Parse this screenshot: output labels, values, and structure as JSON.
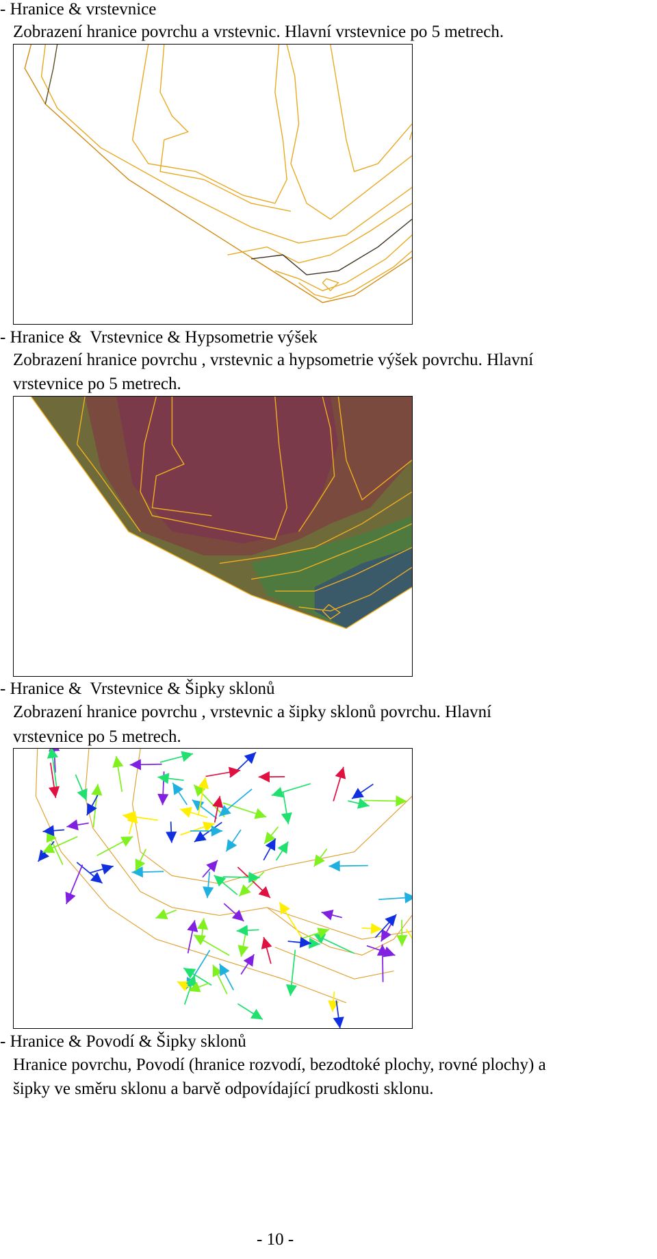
{
  "sections": [
    {
      "heading": "- Hranice & vrstevnice",
      "description": [
        "Zobrazení hranice povrchu a vrstevnic. Hlavní vrstevnice po 5 metrech."
      ]
    },
    {
      "heading": "- Hranice &  Vrstevnice & Hypsometrie výšek",
      "description": [
        "Zobrazení hranice povrchu , vrstevnic a hypsometrie výšek povrchu. Hlavní",
        "vrstevnice po 5 metrech."
      ]
    },
    {
      "heading": "- Hranice &  Vrstevnice & Šipky sklonů",
      "description": [
        "Zobrazení hranice povrchu , vrstevnic a šipky sklonů povrchu. Hlavní",
        "vrstevnice po 5 metrech."
      ]
    },
    {
      "heading": "- Hranice & Povodí & Šipky sklonů",
      "description": [
        "Hranice povrchu, Povodí (hranice rozvodí, bezodtoké plochy, rovné plochy) a",
        "šipky ve směru sklonu a barvě odpovídající prudkosti sklonu."
      ]
    }
  ],
  "page_number": "- 10 -"
}
